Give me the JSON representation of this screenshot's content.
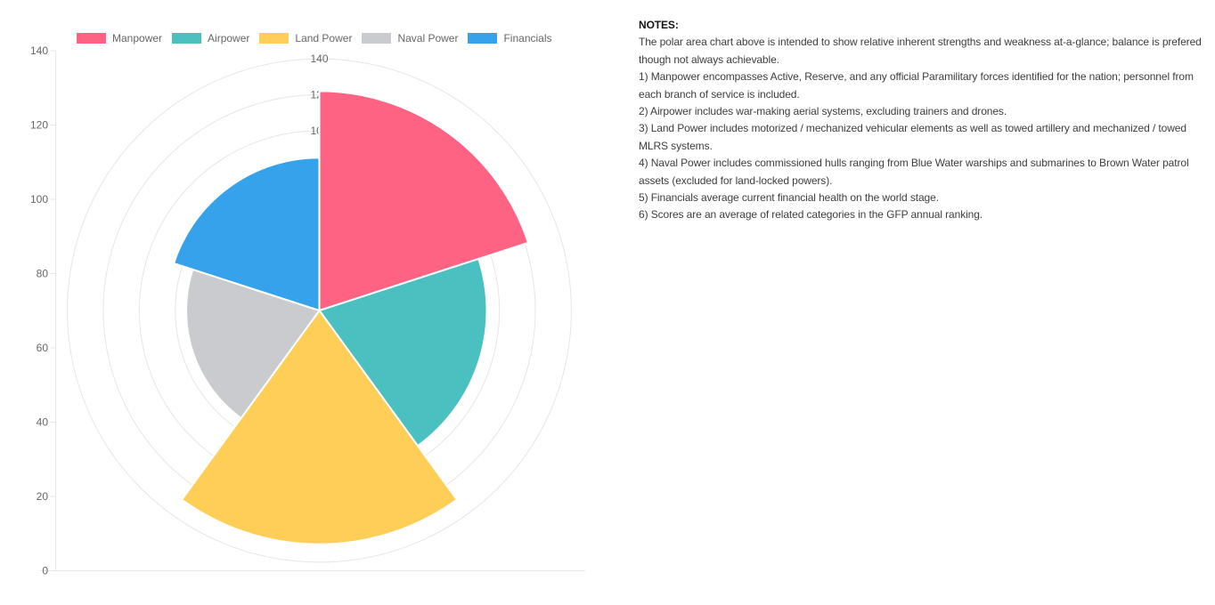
{
  "chart_data": {
    "type": "polarArea",
    "title": "",
    "categories": [
      "Manpower",
      "Airpower",
      "Land Power",
      "Naval Power",
      "Financials"
    ],
    "values": [
      122,
      93,
      130,
      74,
      85
    ],
    "colors": [
      "#FF6384",
      "#4BC0C0",
      "#FFCE56",
      "#C9CBCF",
      "#36A2EB"
    ],
    "legend_position": "top",
    "grid": true,
    "r_axis": {
      "min": 0,
      "max": 140,
      "step": 20,
      "visible_tick_labels": [
        "140",
        "120",
        "100"
      ]
    },
    "y_axis_ticks": [
      "140",
      "120",
      "100",
      "80",
      "60",
      "40",
      "20",
      "0"
    ]
  },
  "notes": {
    "heading": "NOTES:",
    "intro": "The polar area chart above is intended to show relative inherent strengths and weakness at-a-glance; balance is prefered though not always achievable.",
    "items": [
      "1) Manpower encompasses Active, Reserve, and any official Paramilitary forces identified for the nation; personnel from each branch of service is included.",
      "2) Airpower includes war-making aerial systems, excluding trainers and drones.",
      "3) Land Power includes motorized / mechanized vehicular elements as well as towed artillery and mechanized / towed MLRS systems.",
      "4) Naval Power includes commissioned hulls ranging from Blue Water warships and submarines to Brown Water patrol assets (excluded for land-locked powers).",
      "5) Financials average current financial health on the world stage.",
      "6) Scores are an average of related categories in the GFP annual ranking."
    ]
  }
}
